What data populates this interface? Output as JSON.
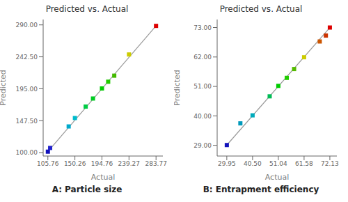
{
  "chart_data": [
    {
      "type": "scatter",
      "title": "Predicted vs. Actual",
      "xlabel": "Actual",
      "ylabel": "Predicted",
      "annotation": "A: Particle size",
      "xlim": [
        98,
        295
      ],
      "ylim": [
        95,
        298
      ],
      "xticks": [
        105.76,
        150.26,
        194.76,
        239.27,
        283.77
      ],
      "yticks": [
        {
          "value": 100,
          "label": "100.00"
        },
        {
          "value": 147.5,
          "label": "147.50"
        },
        {
          "value": 195,
          "label": "195.00"
        },
        {
          "value": 242.5,
          "label": "242.50"
        },
        {
          "value": 290,
          "label": "290.00"
        }
      ],
      "grid": false,
      "legend": "none",
      "series": [
        {
          "type": "line",
          "color": "#999999",
          "line_style": "solid",
          "x": [
            105.76,
            283.77
          ],
          "values": [
            101.5,
            288.5
          ]
        },
        {
          "type": "scatter",
          "marker": "square",
          "x": [
            105.76,
            109.5,
            140.0,
            150.26,
            168.0,
            180.0,
            194.76,
            205.0,
            215.0,
            239.27,
            283.77
          ],
          "values": [
            101.5,
            107.0,
            139.0,
            151.5,
            168.5,
            180.5,
            195.5,
            205.5,
            214.5,
            246.0,
            288.5
          ],
          "colors": [
            "#1212bb",
            "#2222cc",
            "#00aacc",
            "#00bbcc",
            "#00cc44",
            "#00cc22",
            "#00cc00",
            "#22cc00",
            "#44bb00",
            "#cccc00",
            "#dd0000"
          ]
        }
      ]
    },
    {
      "type": "scatter",
      "title": "Predicted vs. Actual",
      "xlabel": "Actual",
      "ylabel": "Predicted",
      "annotation": "B: Entrapment efficiency",
      "xlim": [
        26,
        75
      ],
      "ylim": [
        25,
        76
      ],
      "xticks": [
        29.95,
        {
          "value": 40.5,
          "label": "40.50"
        },
        51.04,
        61.58,
        72.13
      ],
      "yticks": [
        {
          "value": 29,
          "label": "29.00"
        },
        {
          "value": 40,
          "label": "40.00"
        },
        {
          "value": 51,
          "label": "51.00"
        },
        {
          "value": 62,
          "label": "62.00"
        },
        {
          "value": 73,
          "label": "73.00"
        }
      ],
      "grid": false,
      "legend": "none",
      "series": [
        {
          "type": "line",
          "color": "#999999",
          "line_style": "solid",
          "x": [
            29.95,
            72.13
          ],
          "values": [
            29.1,
            73.0
          ]
        },
        {
          "type": "scatter",
          "marker": "square",
          "x": [
            29.95,
            35.5,
            40.5,
            47.5,
            51.04,
            54.5,
            57.5,
            61.58,
            68.0,
            70.5,
            72.13
          ],
          "values": [
            29.1,
            37.2,
            40.2,
            47.3,
            51.2,
            54.2,
            57.5,
            61.9,
            67.8,
            70.0,
            73.0
          ],
          "colors": [
            "#1212bb",
            "#0099bb",
            "#00aabb",
            "#00bb55",
            "#00cc00",
            "#22cc00",
            "#55bb00",
            "#cccc00",
            "#cc5500",
            "#cc3300",
            "#dd0000"
          ]
        }
      ]
    }
  ]
}
